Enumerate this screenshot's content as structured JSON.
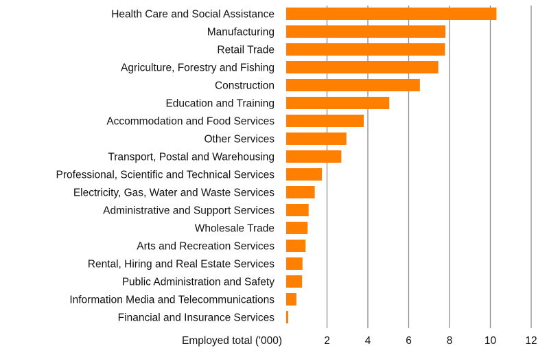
{
  "chart_data": {
    "type": "bar",
    "orientation": "horizontal",
    "categories": [
      "Health Care and Social Assistance",
      "Manufacturing",
      "Retail Trade",
      "Agriculture, Forestry and Fishing",
      "Construction",
      "Education and Training",
      "Accommodation and Food Services",
      "Other Services",
      "Transport, Postal and Warehousing",
      "Professional, Scientific and Technical Services",
      "Electricity, Gas, Water and Waste Services",
      "Administrative and Support Services",
      "Wholesale Trade",
      "Arts and Recreation Services",
      "Rental, Hiring and Real Estate Services",
      "Public Administration and Safety",
      "Information Media and Telecommunications",
      "Financial and Insurance Services"
    ],
    "values": [
      10.3,
      7.8,
      7.78,
      7.45,
      6.55,
      5.05,
      3.8,
      2.95,
      2.7,
      1.75,
      1.4,
      1.1,
      1.05,
      0.95,
      0.8,
      0.78,
      0.5,
      0.1
    ],
    "title": "",
    "xlabel": "Employed total ('000)",
    "ylabel": "",
    "xlim": [
      0,
      12
    ],
    "xticks": [
      2,
      4,
      6,
      8,
      10,
      12
    ],
    "grid": true,
    "legend": "none",
    "bar_color": "#ff8000",
    "grid_color": "#8c8c8c"
  }
}
